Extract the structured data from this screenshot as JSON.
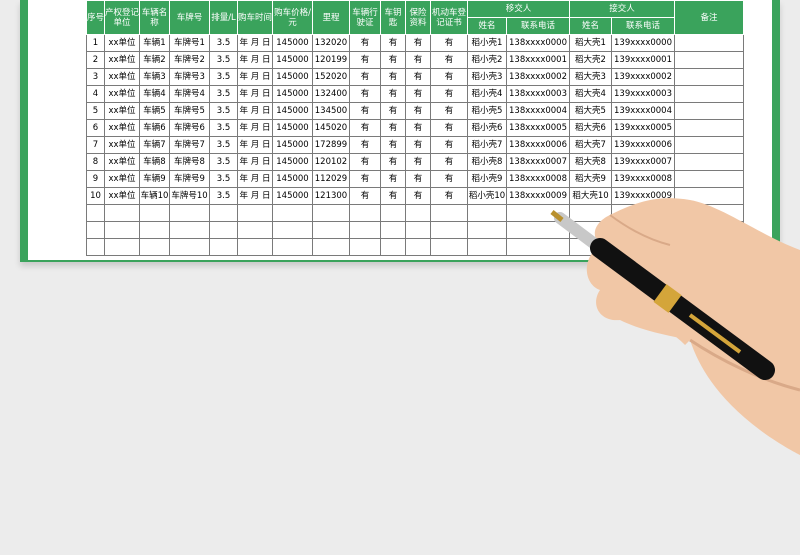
{
  "table": {
    "columns": [
      "序号",
      "产权登记单位",
      "车辆名称",
      "车牌号",
      "排量/L",
      "购车时间",
      "购车价格/元",
      "里程",
      "车辆行驶证",
      "车钥匙",
      "保险资料",
      "机动车登记证书",
      {
        "label": "移交人",
        "sub": [
          "姓名",
          "联系电话"
        ]
      },
      {
        "label": "接交人",
        "sub": [
          "姓名",
          "联系电话"
        ]
      },
      "备注"
    ],
    "rows": [
      [
        1,
        "xx单位",
        "车辆1",
        "车牌号1",
        3.5,
        "年 月 日",
        145000,
        132020,
        "有",
        "有",
        "有",
        "有",
        "稻小壳1",
        "138xxxx0000",
        "稻大壳1",
        "139xxxx0000"
      ],
      [
        2,
        "xx单位",
        "车辆2",
        "车牌号2",
        3.5,
        "年 月 日",
        145000,
        120199,
        "有",
        "有",
        "有",
        "有",
        "稻小壳2",
        "138xxxx0001",
        "稻大壳2",
        "139xxxx0001"
      ],
      [
        3,
        "xx单位",
        "车辆3",
        "车牌号3",
        3.5,
        "年 月 日",
        145000,
        152020,
        "有",
        "有",
        "有",
        "有",
        "稻小壳3",
        "138xxxx0002",
        "稻大壳3",
        "139xxxx0002"
      ],
      [
        4,
        "xx单位",
        "车辆4",
        "车牌号4",
        3.5,
        "年 月 日",
        145000,
        132400,
        "有",
        "有",
        "有",
        "有",
        "稻小壳4",
        "138xxxx0003",
        "稻大壳4",
        "139xxxx0003"
      ],
      [
        5,
        "xx单位",
        "车辆5",
        "车牌号5",
        3.5,
        "年 月 日",
        145000,
        134500,
        "有",
        "有",
        "有",
        "有",
        "稻小壳5",
        "138xxxx0004",
        "稻大壳5",
        "139xxxx0004"
      ],
      [
        6,
        "xx单位",
        "车辆6",
        "车牌号6",
        3.5,
        "年 月 日",
        145000,
        145020,
        "有",
        "有",
        "有",
        "有",
        "稻小壳6",
        "138xxxx0005",
        "稻大壳6",
        "139xxxx0005"
      ],
      [
        7,
        "xx单位",
        "车辆7",
        "车牌号7",
        3.5,
        "年 月 日",
        145000,
        172899,
        "有",
        "有",
        "有",
        "有",
        "稻小壳7",
        "138xxxx0006",
        "稻大壳7",
        "139xxxx0006"
      ],
      [
        8,
        "xx单位",
        "车辆8",
        "车牌号8",
        3.5,
        "年 月 日",
        145000,
        120102,
        "有",
        "有",
        "有",
        "有",
        "稻小壳8",
        "138xxxx0007",
        "稻大壳8",
        "139xxxx0007"
      ],
      [
        9,
        "xx单位",
        "车辆9",
        "车牌号9",
        3.5,
        "年 月 日",
        145000,
        112029,
        "有",
        "有",
        "有",
        "有",
        "稻小壳9",
        "138xxxx0008",
        "稻大壳9",
        "139xxxx0008"
      ],
      [
        10,
        "xx单位",
        "车辆10",
        "车牌号10",
        3.5,
        "年 月 日",
        145000,
        121300,
        "有",
        "有",
        "有",
        "有",
        "稻小壳10",
        "138xxxx0009",
        "稻大壳10",
        "139xxxx0009"
      ]
    ]
  }
}
